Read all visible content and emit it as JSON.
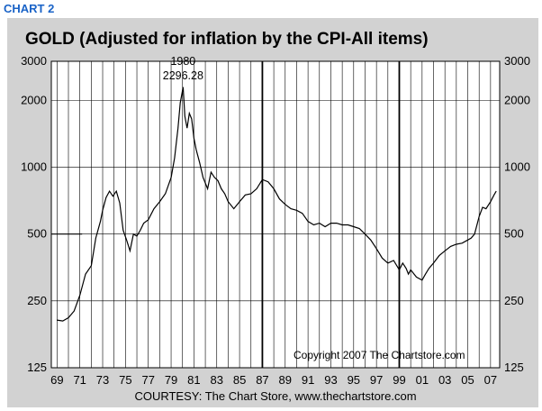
{
  "header": {
    "label": "CHART 2"
  },
  "chart_data": {
    "type": "line",
    "title": "GOLD (Adjusted for inflation by the CPI-All items)",
    "yscale": "log",
    "ylim": [
      125,
      3000
    ],
    "y_ticks": [
      3000,
      2000,
      1000,
      500,
      250,
      125
    ],
    "y_tick_labels": [
      "3000",
      "2000",
      "1000",
      "500",
      "250",
      "125"
    ],
    "x_tick_labels": [
      "69",
      "71",
      "73",
      "75",
      "77",
      "79",
      "81",
      "83",
      "85",
      "87",
      "89",
      "91",
      "93",
      "95",
      "97",
      "99",
      "01",
      "03",
      "05",
      "07"
    ],
    "xlim": [
      1968.5,
      2007.8
    ],
    "grid": true,
    "reference_line": {
      "value": 500,
      "from": 1968.5,
      "to": 1971.2
    },
    "emphasized_years": [
      1987,
      1999
    ],
    "annotation": {
      "year_label": "1980",
      "value_label": "2296.28",
      "x": 1980.05,
      "y": 2296.28
    },
    "copyright": "Copyright  2007  The  Chartstore.com",
    "courtesy": "COURTESY: The Chart Store, www.thechartstore.com",
    "series": [
      {
        "x": [
          1969.0,
          1969.5,
          1970.0,
          1970.5,
          1971.0,
          1971.5,
          1972.0,
          1972.4,
          1972.8,
          1973.0,
          1973.3,
          1973.6,
          1973.9,
          1974.2,
          1974.5,
          1974.8,
          1975.1,
          1975.4,
          1975.7,
          1976.0,
          1976.3,
          1976.6,
          1977.0,
          1977.5,
          1978.0,
          1978.5,
          1979.0,
          1979.3,
          1979.6,
          1979.8,
          1980.05,
          1980.2,
          1980.4,
          1980.6,
          1980.8,
          1981.0,
          1981.2,
          1981.5,
          1981.8,
          1982.2,
          1982.5,
          1982.8,
          1983.1,
          1983.4,
          1983.7,
          1984.0,
          1984.5,
          1985.0,
          1985.5,
          1986.0,
          1986.5,
          1987.0,
          1987.5,
          1988.0,
          1988.5,
          1989.0,
          1989.5,
          1990.0,
          1990.5,
          1991.0,
          1991.5,
          1992.0,
          1992.5,
          1993.0,
          1993.5,
          1994.0,
          1994.5,
          1995.0,
          1995.5,
          1996.0,
          1996.5,
          1997.0,
          1997.5,
          1998.0,
          1998.5,
          1999.0,
          1999.3,
          1999.6,
          1999.8,
          2000.0,
          2000.5,
          2001.0,
          2001.3,
          2001.6,
          2002.0,
          2002.5,
          2003.0,
          2003.5,
          2004.0,
          2004.5,
          2005.0,
          2005.3,
          2005.6,
          2006.0,
          2006.3,
          2006.6,
          2007.0,
          2007.3,
          2007.5
        ],
        "values": [
          205,
          203,
          210,
          225,
          265,
          330,
          360,
          480,
          570,
          640,
          730,
          780,
          740,
          780,
          690,
          520,
          470,
          420,
          500,
          490,
          520,
          560,
          580,
          650,
          700,
          760,
          900,
          1100,
          1500,
          1950,
          2296.28,
          1700,
          1500,
          1750,
          1650,
          1350,
          1200,
          1050,
          900,
          800,
          950,
          900,
          870,
          800,
          760,
          700,
          650,
          700,
          750,
          760,
          800,
          880,
          860,
          800,
          720,
          680,
          650,
          640,
          620,
          570,
          550,
          560,
          540,
          560,
          560,
          550,
          550,
          540,
          530,
          500,
          470,
          430,
          390,
          370,
          380,
          345,
          370,
          350,
          330,
          345,
          320,
          310,
          330,
          350,
          370,
          400,
          420,
          440,
          450,
          455,
          470,
          480,
          500,
          600,
          660,
          650,
          700,
          750,
          780
        ]
      }
    ]
  }
}
